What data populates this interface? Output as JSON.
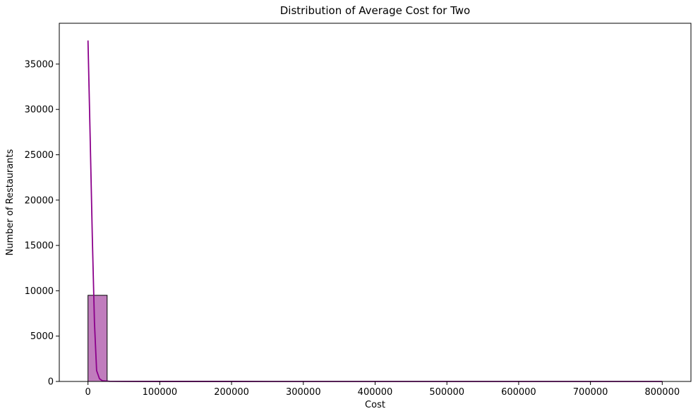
{
  "chart_data": {
    "type": "bar",
    "title": "Distribution of Average Cost for Two",
    "xlabel": "Cost",
    "ylabel": "Number of Restaurants",
    "xlim": [
      -40000,
      840000
    ],
    "ylim": [
      0,
      39500
    ],
    "x_ticks": [
      0,
      100000,
      200000,
      300000,
      400000,
      500000,
      600000,
      700000,
      800000
    ],
    "x_tick_labels": [
      "0",
      "100000",
      "200000",
      "300000",
      "400000",
      "500000",
      "600000",
      "700000",
      "800000"
    ],
    "y_ticks": [
      0,
      5000,
      10000,
      15000,
      20000,
      25000,
      30000,
      35000
    ],
    "y_tick_labels": [
      "0",
      "5000",
      "10000",
      "15000",
      "20000",
      "25000",
      "30000",
      "35000"
    ],
    "bins": [
      {
        "start": 0,
        "end": 26667,
        "count": 9500
      }
    ],
    "kde_line": {
      "x": [
        0,
        3000,
        6000,
        9000,
        12000,
        16000,
        20000,
        30000,
        50000,
        100000,
        200000,
        300000,
        400000,
        500000,
        600000,
        700000,
        800000
      ],
      "y": [
        37600,
        27000,
        16000,
        6500,
        1200,
        300,
        80,
        20,
        10,
        5,
        3,
        2,
        1,
        1,
        1,
        1,
        1
      ]
    },
    "grid": false,
    "colors": {
      "bar_fill": "#c07cbd",
      "bar_edge": "#000000",
      "line": "#8b008b"
    }
  }
}
